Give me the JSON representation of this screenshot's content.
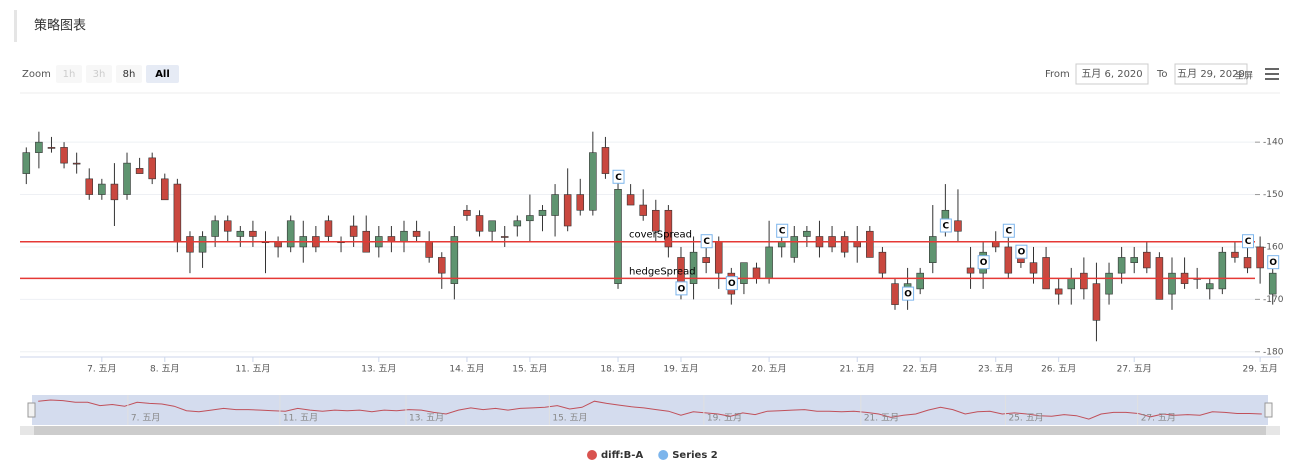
{
  "chart_data": {
    "type": "candlestick",
    "title": "策略图表",
    "zoom_label": "Zoom",
    "zoom_buttons": [
      "1h",
      "3h",
      "8h",
      "All"
    ],
    "zoom_selected": "All",
    "from_label": "From",
    "from_date": "五月 6, 2020",
    "to_label": "To",
    "to_date": "五月 29, 2020",
    "fullscreen": "全屏",
    "xlim": [
      -0.5,
      99.5
    ],
    "xticks": [
      {
        "value": 6,
        "label": "7. 五月"
      },
      {
        "value": 11,
        "label": "8. 五月"
      },
      {
        "value": 18,
        "label": "11. 五月"
      },
      {
        "value": 28,
        "label": "13. 五月"
      },
      {
        "value": 35,
        "label": "14. 五月"
      },
      {
        "value": 40,
        "label": "15. 五月"
      },
      {
        "value": 47,
        "label": "18. 五月"
      },
      {
        "value": 52,
        "label": "19. 五月"
      },
      {
        "value": 59,
        "label": "20. 五月"
      },
      {
        "value": 66,
        "label": "21. 五月"
      },
      {
        "value": 71,
        "label": "22. 五月"
      },
      {
        "value": 77,
        "label": "23. 五月"
      },
      {
        "value": 82,
        "label": "26. 五月"
      },
      {
        "value": 88,
        "label": "27. 五月"
      },
      {
        "value": 98,
        "label": "29. 五月"
      }
    ],
    "ylim": [
      -181,
      -131
    ],
    "yticks": [
      -140,
      -150,
      -160,
      -170,
      -180
    ],
    "grid": true,
    "series": [
      {
        "name": "diff:B-A",
        "color": "#d9534f",
        "up_color": "#5f9470",
        "down_color": "#c9483f",
        "data": [
          [
            -146,
            -141,
            -148,
            -142
          ],
          [
            -142,
            -138,
            -145,
            -140
          ],
          [
            -141,
            -139,
            -142,
            -141
          ],
          [
            -141,
            -140,
            -145,
            -144
          ],
          [
            -144,
            -142,
            -146,
            -144
          ],
          [
            -147,
            -145,
            -151,
            -150
          ],
          [
            -150,
            -147,
            -151,
            -148
          ],
          [
            -148,
            -144,
            -156,
            -151
          ],
          [
            -150,
            -142,
            -151,
            -144
          ],
          [
            -145,
            -143,
            -146,
            -146
          ],
          [
            -143,
            -142,
            -148,
            -147
          ],
          [
            -147,
            -146,
            -151,
            -151
          ],
          [
            -148,
            -147,
            -161,
            -159
          ],
          [
            -158,
            -157,
            -165,
            -161
          ],
          [
            -161,
            -157,
            -164,
            -158
          ],
          [
            -158,
            -154,
            -160,
            -155
          ],
          [
            -155,
            -154,
            -159,
            -157
          ],
          [
            -158,
            -156,
            -160,
            -157
          ],
          [
            -157,
            -155,
            -160,
            -158
          ],
          [
            -159,
            -157,
            -165,
            -159
          ],
          [
            -159,
            -158,
            -162,
            -160
          ],
          [
            -160,
            -154,
            -161,
            -155
          ],
          [
            -160,
            -155,
            -163,
            -158
          ],
          [
            -158,
            -156,
            -161,
            -160
          ],
          [
            -155,
            -154,
            -159,
            -158
          ],
          [
            -159,
            -158,
            -161,
            -159
          ],
          [
            -156,
            -154,
            -160,
            -158
          ],
          [
            -157,
            -154,
            -161,
            -161
          ],
          [
            -160,
            -156,
            -162,
            -158
          ],
          [
            -158,
            -156,
            -161,
            -159
          ],
          [
            -159,
            -155,
            -161,
            -157
          ],
          [
            -157,
            -155,
            -159,
            -158
          ],
          [
            -159,
            -157,
            -163,
            -162
          ],
          [
            -162,
            -161,
            -168,
            -165
          ],
          [
            -167,
            -156,
            -170,
            -158
          ],
          [
            -153,
            -152,
            -155,
            -154
          ],
          [
            -154,
            -153,
            -158,
            -157
          ],
          [
            -157,
            -155,
            -159,
            -155
          ],
          [
            -158,
            -156,
            -160,
            -158
          ],
          [
            -156,
            -154,
            -158,
            -155
          ],
          [
            -155,
            -150,
            -159,
            -154
          ],
          [
            -154,
            -152,
            -157,
            -153
          ],
          [
            -154,
            -148,
            -158,
            -150
          ],
          [
            -150,
            -145,
            -157,
            -156
          ],
          [
            -150,
            -147,
            -154,
            -153
          ],
          [
            -153,
            -138,
            -154,
            -142
          ],
          [
            -141,
            -139,
            -147,
            -146
          ],
          [
            -167,
            -147,
            -168,
            -149
          ],
          [
            -150,
            -148,
            -152,
            -152
          ],
          [
            -152,
            -149,
            -155,
            -154
          ],
          [
            -153,
            -151,
            -159,
            -157
          ],
          [
            -153,
            -152,
            -162,
            -160
          ],
          [
            -162,
            -160,
            -170,
            -167
          ],
          [
            -167,
            -158,
            -170,
            -161
          ],
          [
            -162,
            -158,
            -165,
            -163
          ],
          [
            -159,
            -158,
            -168,
            -165
          ],
          [
            -165,
            -164,
            -171,
            -169
          ],
          [
            -167,
            -163,
            -169,
            -163
          ],
          [
            -164,
            -163,
            -167,
            -166
          ],
          [
            -166,
            -155,
            -167,
            -160
          ],
          [
            -160,
            -157,
            -162,
            -159
          ],
          [
            -162,
            -156,
            -163,
            -158
          ],
          [
            -158,
            -156,
            -160,
            -157
          ],
          [
            -158,
            -155,
            -162,
            -160
          ],
          [
            -158,
            -156,
            -161,
            -160
          ],
          [
            -158,
            -157,
            -162,
            -161
          ],
          [
            -159,
            -156,
            -163,
            -160
          ],
          [
            -157,
            -156,
            -162,
            -162
          ],
          [
            -161,
            -160,
            -166,
            -165
          ],
          [
            -167,
            -166,
            -172,
            -171
          ],
          [
            -170,
            -164,
            -172,
            -167
          ],
          [
            -168,
            -164,
            -169,
            -165
          ],
          [
            -163,
            -152,
            -165,
            -158
          ],
          [
            -156,
            -148,
            -158,
            -153
          ],
          [
            -155,
            -149,
            -159,
            -157
          ],
          [
            -164,
            -160,
            -168,
            -165
          ],
          [
            -165,
            -159,
            -168,
            -161
          ],
          [
            -159,
            -157,
            -161,
            -160
          ],
          [
            -160,
            -158,
            -166,
            -165
          ],
          [
            -162,
            -160,
            -164,
            -163
          ],
          [
            -163,
            -160,
            -167,
            -165
          ],
          [
            -162,
            -160,
            -168,
            -168
          ],
          [
            -168,
            -166,
            -171,
            -169
          ],
          [
            -168,
            -164,
            -171,
            -166
          ],
          [
            -165,
            -162,
            -170,
            -168
          ],
          [
            -167,
            -163,
            -178,
            -174
          ],
          [
            -169,
            -163,
            -171,
            -165
          ],
          [
            -165,
            -160,
            -167,
            -162
          ],
          [
            -163,
            -160,
            -165,
            -162
          ],
          [
            -161,
            -159,
            -165,
            -164
          ],
          [
            -162,
            -161,
            -170,
            -170
          ],
          [
            -169,
            -162,
            -172,
            -165
          ],
          [
            -165,
            -162,
            -168,
            -167
          ],
          [
            -166,
            -164,
            -168,
            -166
          ],
          [
            -168,
            -166,
            -170,
            -167
          ],
          [
            -168,
            -160,
            -169,
            -161
          ],
          [
            -161,
            -159,
            -163,
            -162
          ],
          [
            -162,
            -159,
            -165,
            -164
          ],
          [
            -160,
            -158,
            -167,
            -164
          ],
          [
            -169,
            -164,
            -171,
            -165
          ]
        ]
      },
      {
        "name": "Series 2",
        "color": "#7cb5ec"
      }
    ],
    "lines": [
      {
        "label": "coverSpread",
        "value": -159,
        "color": "#e53935"
      },
      {
        "label": "hedgeSpread",
        "value": -166,
        "color": "#e53935"
      }
    ],
    "flags": [
      {
        "x": 47,
        "y": -146.7,
        "label": "C"
      },
      {
        "x": 52,
        "y": -168,
        "label": "O"
      },
      {
        "x": 54,
        "y": -159,
        "label": "C"
      },
      {
        "x": 56,
        "y": -167,
        "label": "O"
      },
      {
        "x": 60,
        "y": -157,
        "label": "C"
      },
      {
        "x": 70,
        "y": -169,
        "label": "O"
      },
      {
        "x": 73,
        "y": -156,
        "label": "C"
      },
      {
        "x": 76,
        "y": -163,
        "label": "O"
      },
      {
        "x": 78,
        "y": -157,
        "label": "C"
      },
      {
        "x": 79,
        "y": -161,
        "label": "O"
      },
      {
        "x": 97,
        "y": -159,
        "label": "C"
      },
      {
        "x": 99,
        "y": -163,
        "label": "O"
      }
    ],
    "navigator_ticks": [
      {
        "value": 7.5,
        "label": "7. 五月"
      },
      {
        "value": 19.8,
        "label": "11. 五月"
      },
      {
        "value": 30,
        "label": "13. 五月"
      },
      {
        "value": 41.6,
        "label": "15. 五月"
      },
      {
        "value": 54.1,
        "label": "19. 五月"
      },
      {
        "value": 66.8,
        "label": "21. 五月"
      },
      {
        "value": 78.5,
        "label": "25. 五月"
      },
      {
        "value": 89.2,
        "label": "27. 五月"
      }
    ]
  }
}
